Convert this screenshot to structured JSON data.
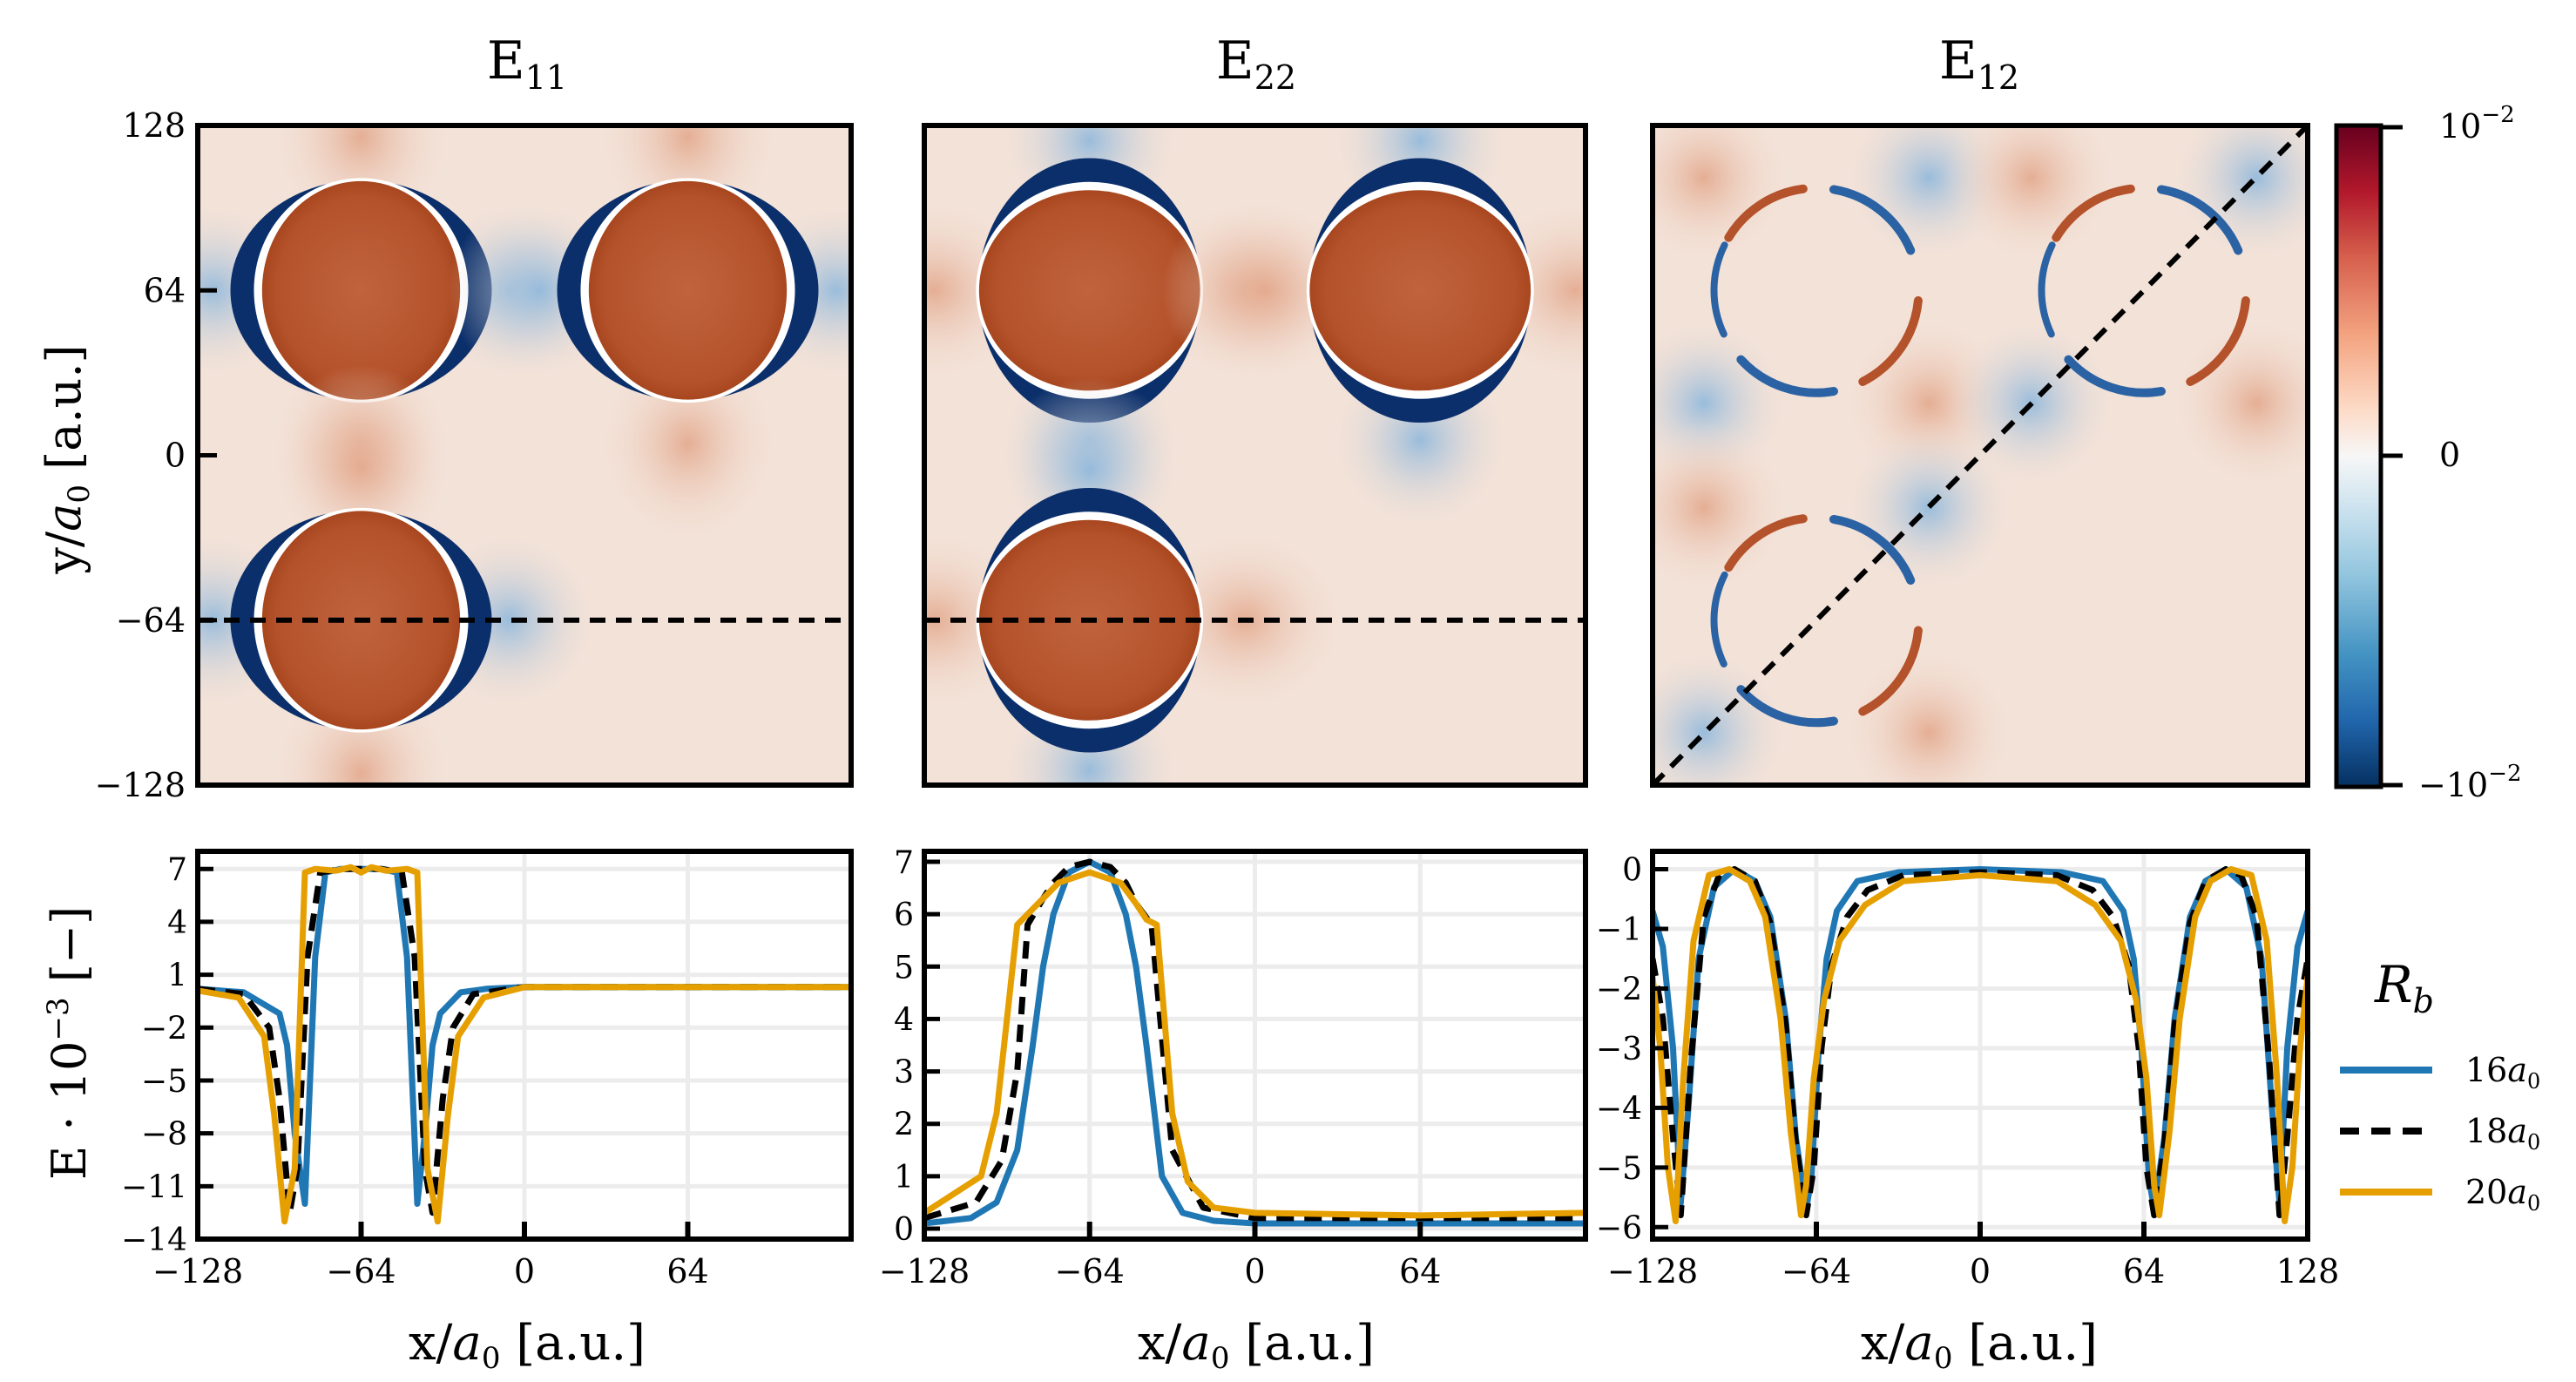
{
  "chart_data": [
    {
      "type": "heatmap",
      "title": "E11",
      "title_main": "E",
      "title_sub": "11",
      "ylabel": "y/a0 [a.u.]",
      "ylabel_parts": {
        "main": "y/",
        "var": "a",
        "sub": "0",
        "rest": " [a.u.]"
      },
      "xlim": [
        -128,
        128
      ],
      "ylim": [
        -128,
        128
      ],
      "yticks": [
        128,
        64,
        0,
        -64,
        -128
      ],
      "ytick_labels": [
        "128",
        "64",
        "0",
        "−64",
        "−128"
      ],
      "bubbles": [
        {
          "x": -64,
          "y": 64
        },
        {
          "x": 64,
          "y": 64
        },
        {
          "x": -64,
          "y": -64
        }
      ],
      "bubble_orientation": "horizontal",
      "cut_line": "y = -64"
    },
    {
      "type": "heatmap",
      "title": "E22",
      "title_main": "E",
      "title_sub": "22",
      "xlim": [
        -128,
        128
      ],
      "ylim": [
        -128,
        128
      ],
      "bubbles": [
        {
          "x": -64,
          "y": 64
        },
        {
          "x": 64,
          "y": 64
        },
        {
          "x": -64,
          "y": -64
        }
      ],
      "bubble_orientation": "vertical",
      "cut_line": "y = -64"
    },
    {
      "type": "heatmap",
      "title": "E12",
      "title_main": "E",
      "title_sub": "12",
      "xlim": [
        -128,
        128
      ],
      "ylim": [
        -128,
        128
      ],
      "bubbles": [
        {
          "x": -64,
          "y": 64
        },
        {
          "x": 64,
          "y": 64
        },
        {
          "x": -64,
          "y": -64
        }
      ],
      "bubble_orientation": "diagonal",
      "cut_line": "y = x"
    },
    {
      "type": "line",
      "ylabel": "E · 10^-3 [−]",
      "ylabel_parts": {
        "main": "E · 10",
        "sup": "−3",
        "rest": " [−]"
      },
      "xlabel": "x/a0 [a.u.]",
      "xlim": [
        -128,
        128
      ],
      "ylim": [
        -14,
        8
      ],
      "xticks": [
        -128,
        -64,
        0,
        64
      ],
      "xtick_labels": [
        "−128",
        "−64",
        "0",
        "64"
      ],
      "yticks": [
        7,
        4,
        1,
        -2,
        -5,
        -8,
        -11,
        -14
      ],
      "ytick_labels": [
        "7",
        "4",
        "1",
        "−2",
        "−5",
        "−8",
        "−11",
        "−14"
      ],
      "series": [
        {
          "name": "16a0",
          "x": [
            -128,
            -110,
            -96,
            -93,
            -90,
            -86,
            -82,
            -78,
            -72,
            -64,
            -56,
            -50,
            -46,
            -42,
            -39,
            -36,
            -33,
            -25,
            -15,
            0,
            64,
            128
          ],
          "y": [
            0.2,
            0,
            -1.2,
            -3,
            -8,
            -12,
            2,
            6.8,
            7,
            7,
            7,
            6.8,
            2,
            -12,
            -8,
            -3,
            -1.2,
            0,
            0.2,
            0.3,
            0.3,
            0.3
          ]
        },
        {
          "name": "18a0",
          "x": [
            -128,
            -110,
            -100,
            -96,
            -92,
            -89,
            -85,
            -80,
            -72,
            -64,
            -56,
            -48,
            -43,
            -39,
            -36,
            -32,
            -28,
            -20,
            0,
            64,
            128
          ],
          "y": [
            0.2,
            -0.1,
            -2,
            -6,
            -12.5,
            -10,
            2,
            6.8,
            7,
            7,
            7,
            6.8,
            2,
            -10,
            -12.5,
            -6,
            -2,
            -0.1,
            0.3,
            0.3,
            0.3
          ]
        },
        {
          "name": "20a0",
          "x": [
            -128,
            -112,
            -102,
            -98,
            -94,
            -90,
            -86,
            -82,
            -74,
            -68,
            -64,
            -60,
            -54,
            -46,
            -42,
            -38,
            -34,
            -30,
            -26,
            -16,
            0,
            64,
            128
          ],
          "y": [
            0.1,
            -0.3,
            -2.5,
            -7,
            -13,
            -10,
            6.8,
            7,
            6.9,
            7.1,
            6.8,
            7.1,
            6.9,
            7,
            6.8,
            -10,
            -13,
            -7,
            -2.5,
            -0.3,
            0.3,
            0.3,
            0.3
          ]
        }
      ]
    },
    {
      "type": "line",
      "xlabel": "x/a0 [a.u.]",
      "xlim": [
        -128,
        128
      ],
      "ylim": [
        -0.2,
        7.2
      ],
      "xticks": [
        -128,
        -64,
        0,
        64
      ],
      "xtick_labels": [
        "−128",
        "−64",
        "0",
        "64"
      ],
      "yticks": [
        0,
        1,
        2,
        3,
        4,
        5,
        6,
        7
      ],
      "ytick_labels": [
        "0",
        "1",
        "2",
        "3",
        "4",
        "5",
        "6",
        "7"
      ],
      "series": [
        {
          "name": "16a0",
          "x": [
            -128,
            -110,
            -100,
            -92,
            -86,
            -82,
            -78,
            -72,
            -64,
            -56,
            -50,
            -46,
            -42,
            -36,
            -28,
            -16,
            0,
            64,
            128
          ],
          "y": [
            0.1,
            0.2,
            0.5,
            1.5,
            3.5,
            5,
            6,
            6.8,
            7,
            6.8,
            6,
            5,
            3.5,
            1,
            0.3,
            0.15,
            0.1,
            0.1,
            0.1
          ]
        },
        {
          "name": "18a0",
          "x": [
            -128,
            -108,
            -98,
            -92,
            -88,
            -82,
            -78,
            -72,
            -64,
            -56,
            -50,
            -46,
            -40,
            -32,
            -20,
            0,
            64,
            128
          ],
          "y": [
            0.2,
            0.5,
            1.3,
            3,
            5.8,
            6.3,
            6.6,
            6.9,
            7,
            6.9,
            6.6,
            6.2,
            5.8,
            1.5,
            0.4,
            0.2,
            0.2,
            0.2
          ]
        },
        {
          "name": "20a0",
          "x": [
            -128,
            -106,
            -100,
            -96,
            -92,
            -90,
            -84,
            -76,
            -64,
            -52,
            -46,
            -42,
            -38,
            -35,
            -32,
            -26,
            -16,
            0,
            64,
            128
          ],
          "y": [
            0.3,
            1,
            2.2,
            4,
            5.8,
            5.9,
            6.2,
            6.6,
            6.8,
            6.6,
            6.2,
            5.9,
            5.8,
            4,
            2.2,
            0.9,
            0.4,
            0.3,
            0.25,
            0.3
          ]
        }
      ]
    },
    {
      "type": "line",
      "xlabel": "x/a0 [a.u.]",
      "xlim": [
        -128,
        128
      ],
      "ylim": [
        -6.2,
        0.3
      ],
      "xticks": [
        -128,
        -64,
        0,
        64,
        128
      ],
      "xtick_labels": [
        "−128",
        "−64",
        "0",
        "64",
        "128"
      ],
      "yticks": [
        0,
        -1,
        -2,
        -3,
        -4,
        -5,
        -6
      ],
      "ytick_labels": [
        "0",
        "−1",
        "−2",
        "−3",
        "−4",
        "−5",
        "−6"
      ],
      "series": [
        {
          "name": "16a0",
          "x": [
            -128,
            -124,
            -120,
            -117,
            -114,
            -110,
            -104,
            -96,
            -88,
            -82,
            -76,
            -72,
            -68,
            -66,
            -63,
            -60,
            -56,
            -48,
            -32,
            0,
            32,
            48,
            56,
            60,
            63,
            66,
            68,
            72,
            76,
            82,
            88,
            96,
            104,
            110,
            114,
            117,
            120,
            124,
            128
          ],
          "y": [
            -0.7,
            -1.3,
            -3,
            -5.6,
            -4,
            -1.5,
            -0.3,
            0,
            -0.2,
            -0.8,
            -2.5,
            -4.5,
            -5.7,
            -5.2,
            -3,
            -1.5,
            -0.7,
            -0.2,
            -0.05,
            0,
            -0.05,
            -0.2,
            -0.7,
            -1.5,
            -3,
            -5.2,
            -5.7,
            -4.5,
            -2.5,
            -0.8,
            -0.2,
            0,
            -0.3,
            -1.5,
            -4,
            -5.6,
            -3,
            -1.3,
            -0.7
          ]
        },
        {
          "name": "18a0",
          "x": [
            -128,
            -124,
            -120,
            -117,
            -113,
            -108,
            -102,
            -96,
            -88,
            -82,
            -76,
            -72,
            -68,
            -65,
            -62,
            -58,
            -52,
            -44,
            -30,
            0,
            30,
            44,
            52,
            58,
            62,
            65,
            68,
            72,
            76,
            82,
            88,
            96,
            102,
            108,
            113,
            117,
            120,
            124,
            128
          ],
          "y": [
            -1.5,
            -2.5,
            -4.5,
            -5.8,
            -3.2,
            -0.8,
            -0.1,
            0,
            -0.2,
            -0.9,
            -2.6,
            -4.6,
            -5.8,
            -5,
            -3,
            -1.6,
            -0.8,
            -0.35,
            -0.1,
            -0.05,
            -0.1,
            -0.35,
            -0.8,
            -1.6,
            -3,
            -5,
            -5.8,
            -4.6,
            -2.6,
            -0.9,
            -0.2,
            0,
            -0.1,
            -0.8,
            -3.2,
            -5.8,
            -4.5,
            -2.5,
            -1.5
          ]
        },
        {
          "name": "20a0",
          "x": [
            -128,
            -125,
            -122,
            -119,
            -116,
            -112,
            -106,
            -98,
            -90,
            -84,
            -78,
            -74,
            -70,
            -68,
            -65,
            -61,
            -55,
            -45,
            -30,
            0,
            30,
            45,
            55,
            61,
            65,
            68,
            70,
            74,
            78,
            84,
            90,
            98,
            106,
            112,
            116,
            119,
            122,
            125,
            128
          ],
          "y": [
            -1.8,
            -3,
            -5,
            -5.9,
            -3.5,
            -1.2,
            -0.1,
            0,
            -0.2,
            -0.8,
            -2.5,
            -4.4,
            -5.8,
            -5.3,
            -3.5,
            -2.2,
            -1.2,
            -0.6,
            -0.2,
            -0.1,
            -0.2,
            -0.6,
            -1.2,
            -2.2,
            -3.5,
            -5.3,
            -5.8,
            -4.4,
            -2.5,
            -0.8,
            -0.2,
            0,
            -0.1,
            -1.2,
            -3.5,
            -5.9,
            -5,
            -3,
            -1.8
          ]
        }
      ]
    }
  ],
  "colorbar": {
    "top_label": {
      "base": "10",
      "exp": "−2"
    },
    "mid_label": "0",
    "bottom_label": {
      "base": "−10",
      "exp": "−2"
    },
    "colors": [
      "#67001f",
      "#b2182b",
      "#d6604d",
      "#f4a582",
      "#fddbc7",
      "#f7f7f7",
      "#d1e5f0",
      "#92c5de",
      "#4393c3",
      "#2166ac",
      "#053061"
    ]
  },
  "legend": {
    "title": "R",
    "title_sub": "b",
    "placement": "right of bottom row",
    "entries": [
      {
        "label": "16a0",
        "num": "16",
        "var": "a",
        "sub": "0",
        "color": "#1f77b4",
        "dash": "solid"
      },
      {
        "label": "18a0",
        "num": "18",
        "var": "a",
        "sub": "0",
        "color": "#000000",
        "dash": "dashed"
      },
      {
        "label": "20a0",
        "num": "20",
        "var": "a",
        "sub": "0",
        "color": "#e69f00",
        "dash": "solid"
      }
    ]
  },
  "colors": {
    "background_field": "#f3e2d8",
    "bubble_inner": "#b8532d",
    "ring_dark": "#0b2f6b",
    "ring_light": "#bcd4ea",
    "lobe": "#eab9a1",
    "grid": "#ececec"
  }
}
